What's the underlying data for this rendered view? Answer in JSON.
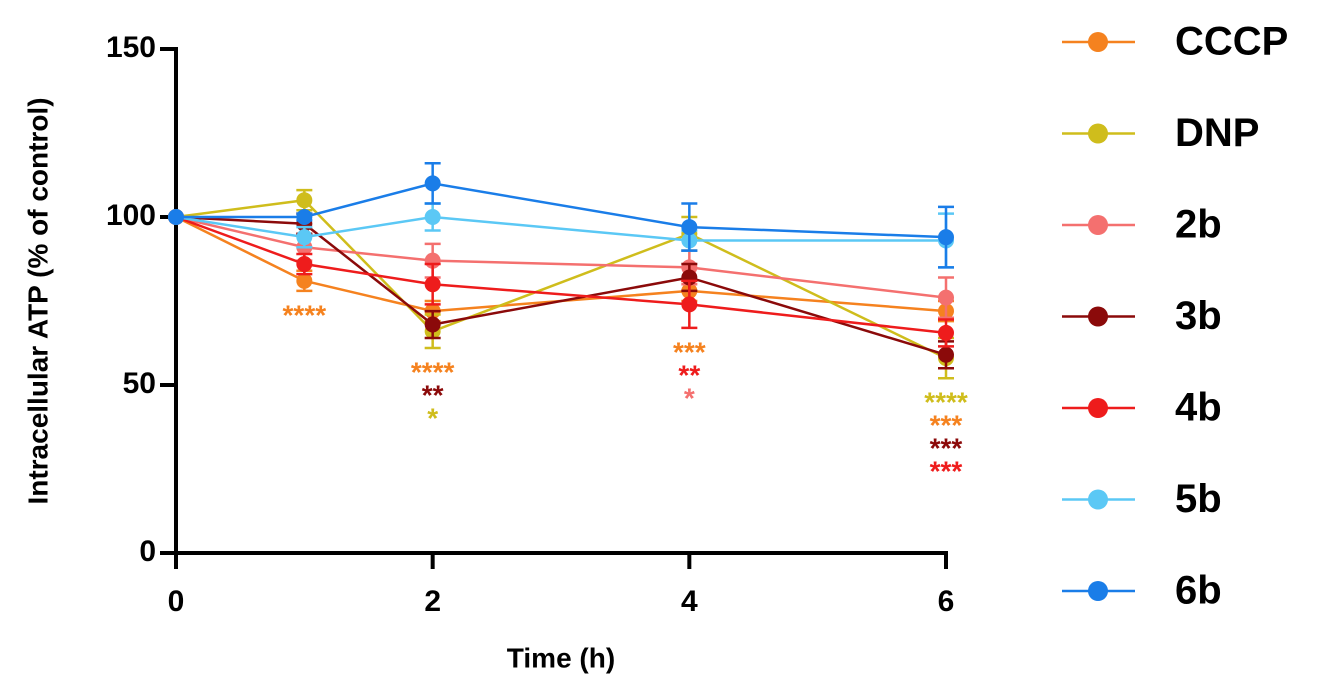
{
  "chart_data": {
    "type": "line",
    "xlabel": "Time (h)",
    "ylabel": "Intracellular ATP (% of control)",
    "x": [
      0,
      1,
      2,
      4,
      6
    ],
    "xlim": [
      0,
      6
    ],
    "xticks": [
      0,
      2,
      4,
      6
    ],
    "ylim": [
      0,
      150
    ],
    "yticks": [
      0,
      50,
      100,
      150
    ],
    "series": [
      {
        "name": "CCCP",
        "color": "#f5821f",
        "values": [
          100,
          81,
          72,
          78,
          72
        ],
        "errors": [
          0,
          3,
          3,
          3,
          3
        ]
      },
      {
        "name": "DNP",
        "color": "#cfbd1c",
        "values": [
          100,
          105,
          66,
          95,
          58
        ],
        "errors": [
          0,
          3,
          5,
          5,
          6
        ]
      },
      {
        "name": "2b",
        "color": "#f4706f",
        "values": [
          100,
          91,
          87,
          85,
          76
        ],
        "errors": [
          0,
          4,
          5,
          5,
          6
        ]
      },
      {
        "name": "3b",
        "color": "#8b0a0a",
        "values": [
          100,
          98,
          68,
          82,
          59
        ],
        "errors": [
          0,
          3,
          4,
          4,
          4
        ]
      },
      {
        "name": "4b",
        "color": "#ee1c1c",
        "values": [
          100,
          86,
          80,
          74,
          65.5
        ],
        "errors": [
          0,
          3,
          6,
          7,
          4
        ]
      },
      {
        "name": "5b",
        "color": "#5bc8f5",
        "values": [
          100,
          94,
          100,
          93,
          93
        ],
        "errors": [
          0,
          3,
          4,
          3,
          8
        ]
      },
      {
        "name": "6b",
        "color": "#1a7de8",
        "values": [
          100,
          100,
          110,
          97,
          94
        ],
        "errors": [
          0,
          1,
          6,
          7,
          9
        ]
      }
    ],
    "annotations": [
      {
        "x": 1,
        "labels": [
          {
            "text": "****",
            "color": "#f5821f"
          }
        ]
      },
      {
        "x": 2,
        "labels": [
          {
            "text": "****",
            "color": "#f5821f"
          },
          {
            "text": "**",
            "color": "#8b0a0a"
          },
          {
            "text": "*",
            "color": "#cfbd1c"
          }
        ]
      },
      {
        "x": 4,
        "labels": [
          {
            "text": "***",
            "color": "#f5821f"
          },
          {
            "text": "**",
            "color": "#ee1c1c"
          },
          {
            "text": "*",
            "color": "#f4706f"
          }
        ]
      },
      {
        "x": 6,
        "labels": [
          {
            "text": "****",
            "color": "#cfbd1c"
          },
          {
            "text": "***",
            "color": "#f5821f"
          },
          {
            "text": "***",
            "color": "#8b0a0a"
          },
          {
            "text": "***",
            "color": "#ee1c1c"
          }
        ]
      }
    ],
    "legend": "right"
  }
}
